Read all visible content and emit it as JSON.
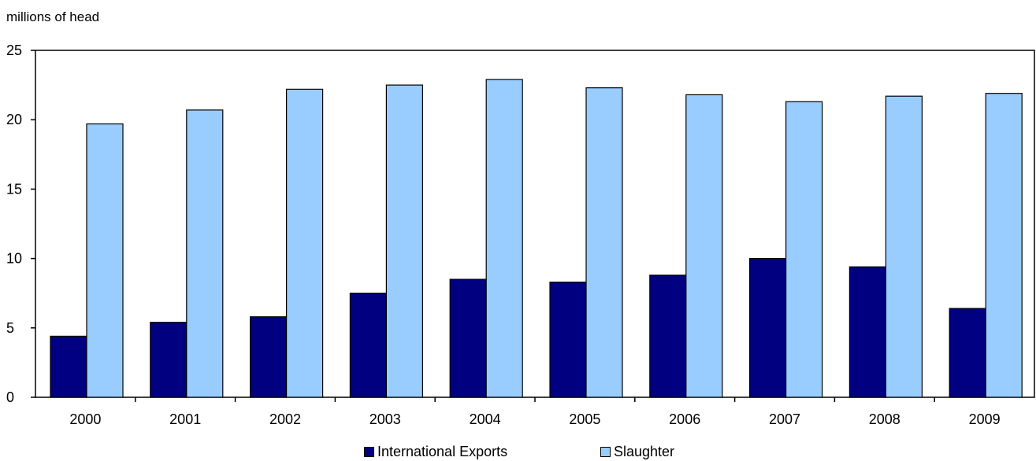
{
  "chart_data": {
    "type": "bar",
    "title": "",
    "ylabel": "millions of head",
    "xlabel": "",
    "ylim": [
      0,
      25
    ],
    "yticks": [
      0,
      5,
      10,
      15,
      20,
      25
    ],
    "grid": false,
    "legend_position": "bottom",
    "categories": [
      "2000",
      "2001",
      "2002",
      "2003",
      "2004",
      "2005",
      "2006",
      "2007",
      "2008",
      "2009"
    ],
    "series": [
      {
        "name": "International Exports",
        "color": "#000080",
        "values": [
          4.4,
          5.4,
          5.8,
          7.5,
          8.5,
          8.3,
          8.8,
          10.0,
          9.4,
          6.4
        ]
      },
      {
        "name": "Slaughter",
        "color": "#99ccff",
        "values": [
          19.7,
          20.7,
          22.2,
          22.5,
          22.9,
          22.3,
          21.8,
          21.3,
          21.7,
          21.9
        ]
      }
    ]
  }
}
